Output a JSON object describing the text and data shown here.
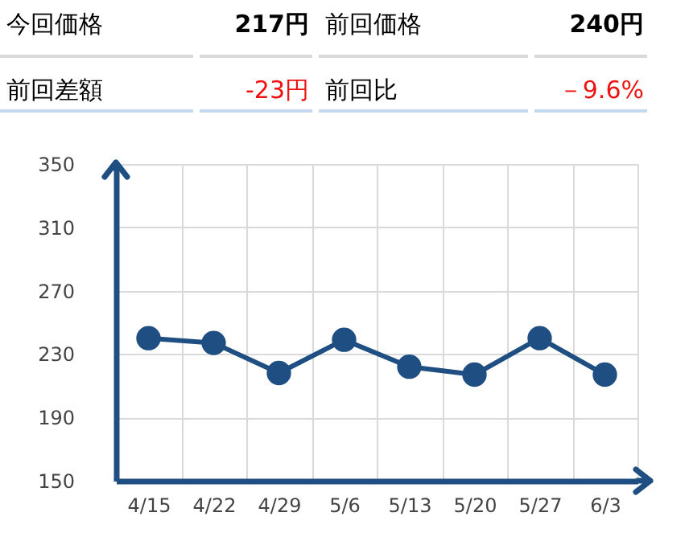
{
  "chart_data": [
    {
      "type": "other",
      "annotations": [
        "今回価格",
        "217円",
        "前回価格",
        "240円",
        "前回差額",
        "-23円",
        "前回比",
        "－9.6%"
      ]
    },
    {
      "type": "line",
      "categories": [
        "4/15",
        "4/22",
        "4/29",
        "5/6",
        "5/13",
        "5/20",
        "5/27",
        "6/3"
      ],
      "series": [
        {
          "color": "#1f4e82",
          "values": [
            240,
            237,
            218,
            239,
            222,
            217,
            240,
            217
          ]
        }
      ],
      "ylim": [
        150,
        350
      ],
      "yticks": [
        150,
        190,
        230,
        270,
        310,
        350
      ],
      "grid": true,
      "marker": "circle",
      "line_style": "solid"
    }
  ]
}
